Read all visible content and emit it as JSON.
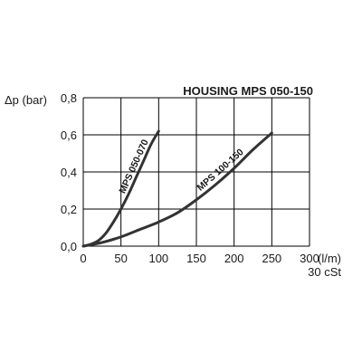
{
  "chart_data": {
    "type": "line",
    "title": "HOUSING MPS 050-150",
    "ylabel": "Δp (bar)",
    "xlabel": "(l/m)",
    "xlabel_note": "30 cSt",
    "xlim": [
      0,
      300
    ],
    "ylim": [
      0,
      0.8
    ],
    "x_ticks": [
      0,
      50,
      100,
      150,
      200,
      250,
      300
    ],
    "x_tick_labels": [
      "0",
      "50",
      "100",
      "150",
      "200",
      "250",
      "300"
    ],
    "y_ticks": [
      0,
      0.2,
      0.4,
      0.6,
      0.8
    ],
    "y_tick_labels": [
      "0,0",
      "0,2",
      "0,4",
      "0,6",
      "0,8"
    ],
    "grid": true,
    "line_color": "#333333",
    "grid_color": "#000000",
    "series": [
      {
        "name": "MPS 050-070",
        "x": [
          0,
          10,
          20,
          30,
          40,
          50,
          60,
          70,
          80,
          90,
          100
        ],
        "y": [
          0,
          0.01,
          0.03,
          0.07,
          0.13,
          0.2,
          0.28,
          0.37,
          0.46,
          0.55,
          0.62
        ]
      },
      {
        "name": "MPS 100-150",
        "x": [
          0,
          25,
          50,
          75,
          100,
          125,
          150,
          175,
          200,
          225,
          250
        ],
        "y": [
          0,
          0.02,
          0.05,
          0.09,
          0.13,
          0.18,
          0.25,
          0.33,
          0.42,
          0.52,
          0.61
        ]
      }
    ]
  }
}
